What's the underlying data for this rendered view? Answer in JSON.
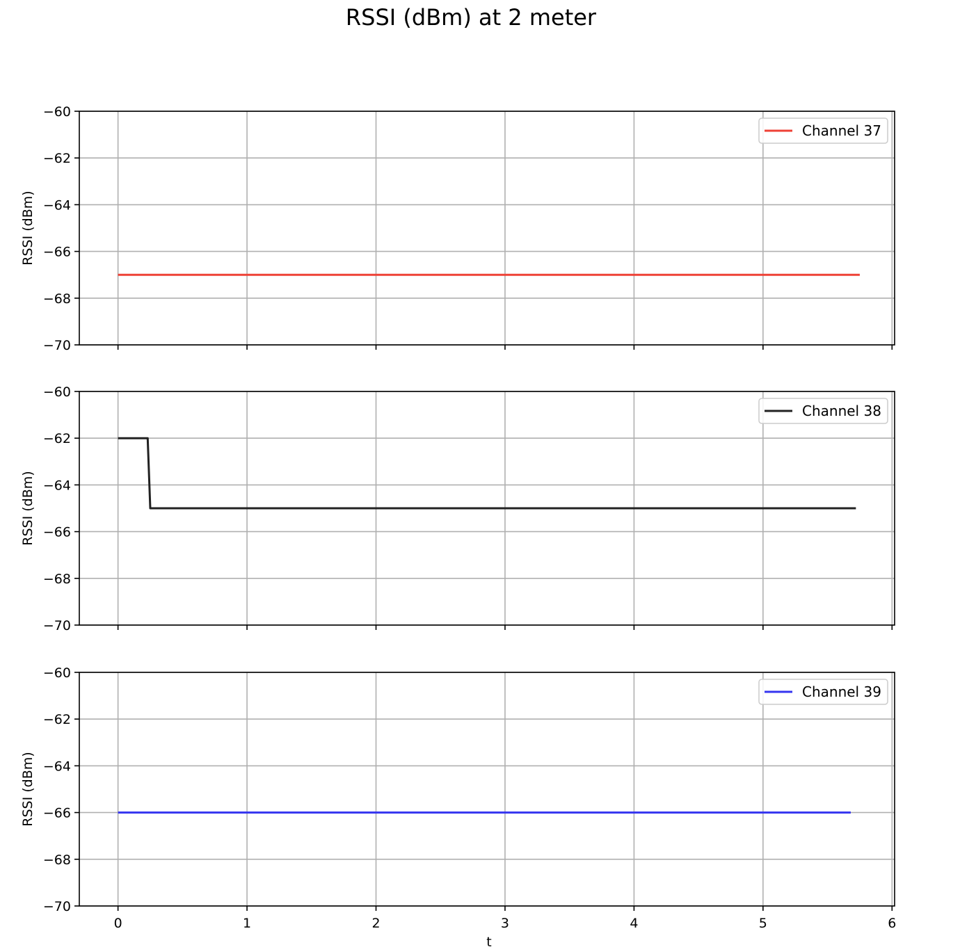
{
  "figure": {
    "title": "RSSI (dBm) at 2 meter"
  },
  "chart_data": [
    {
      "type": "line",
      "ylabel": "RSSI (dBm)",
      "xlabel": "",
      "xlim": [
        -0.3,
        6.02
      ],
      "ylim": [
        -70,
        -60
      ],
      "xticks": [
        0,
        1,
        2,
        3,
        4,
        5,
        6
      ],
      "yticks": [
        -60,
        -62,
        -64,
        -66,
        -68,
        -70
      ],
      "ytick_labels": [
        "−60",
        "−62",
        "−64",
        "−66",
        "−68",
        "−70"
      ],
      "show_xtick_labels": false,
      "grid": true,
      "legend": "top-right",
      "series": [
        {
          "name": "Channel 37",
          "color": "#ee4136",
          "x": [
            0,
            5.75
          ],
          "y": [
            -67,
            -67
          ]
        }
      ]
    },
    {
      "type": "line",
      "ylabel": "RSSI (dBm)",
      "xlabel": "",
      "xlim": [
        -0.3,
        6.02
      ],
      "ylim": [
        -70,
        -60
      ],
      "xticks": [
        0,
        1,
        2,
        3,
        4,
        5,
        6
      ],
      "yticks": [
        -60,
        -62,
        -64,
        -66,
        -68,
        -70
      ],
      "ytick_labels": [
        "−60",
        "−62",
        "−64",
        "−66",
        "−68",
        "−70"
      ],
      "show_xtick_labels": false,
      "grid": true,
      "legend": "top-right",
      "series": [
        {
          "name": "Channel 38",
          "color": "#222222",
          "x": [
            0,
            0.23,
            0.25,
            5.72
          ],
          "y": [
            -62,
            -62,
            -65,
            -65
          ]
        }
      ]
    },
    {
      "type": "line",
      "ylabel": "RSSI (dBm)",
      "xlabel": "t",
      "xlim": [
        -0.3,
        6.02
      ],
      "ylim": [
        -70,
        -60
      ],
      "xticks": [
        0,
        1,
        2,
        3,
        4,
        5,
        6
      ],
      "xtick_labels": [
        "0",
        "1",
        "2",
        "3",
        "4",
        "5",
        "6"
      ],
      "yticks": [
        -60,
        -62,
        -64,
        -66,
        -68,
        -70
      ],
      "ytick_labels": [
        "−60",
        "−62",
        "−64",
        "−66",
        "−68",
        "−70"
      ],
      "show_xtick_labels": true,
      "grid": true,
      "legend": "top-right",
      "series": [
        {
          "name": "Channel 39",
          "color": "#3535f0",
          "x": [
            0,
            5.68
          ],
          "y": [
            -66,
            -66
          ]
        }
      ]
    }
  ]
}
